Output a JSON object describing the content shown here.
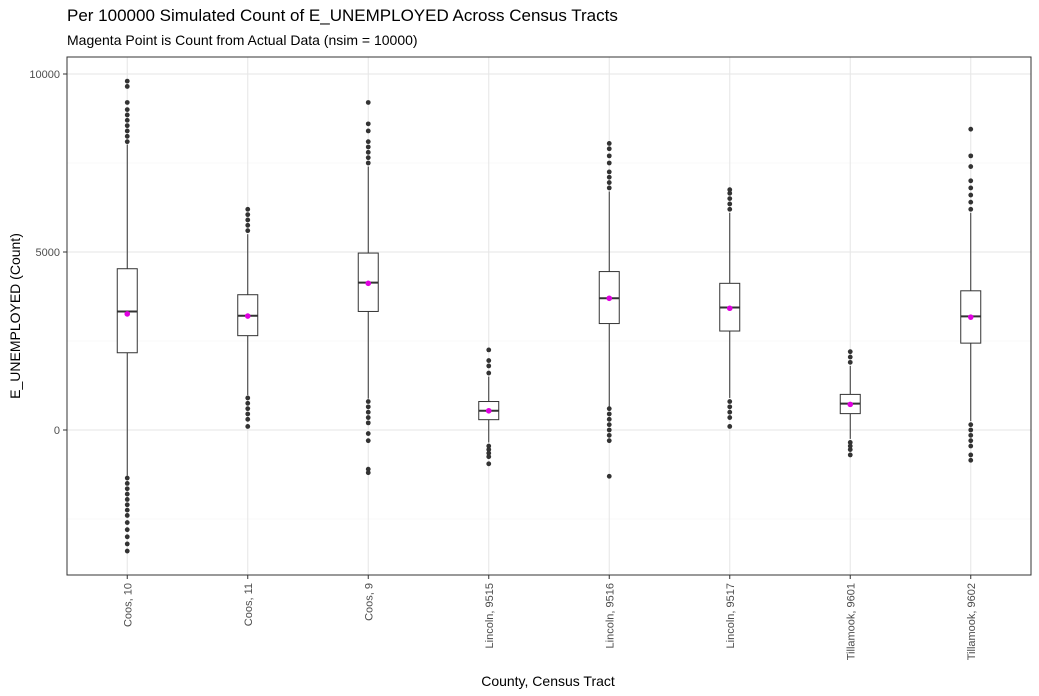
{
  "chart_data": {
    "type": "boxplot",
    "title": "Per 100000 Simulated Count of E_UNEMPLOYED Across Census Tracts",
    "subtitle": "Magenta Point is Count from Actual Data (nsim = 10000)",
    "xlabel": "County, Census Tract",
    "ylabel": "E_UNEMPLOYED (Count)",
    "ylim": [
      -4100,
      10300
    ],
    "yticks": [
      0,
      5000,
      10000
    ],
    "ytick_labels": [
      "0",
      "5000",
      "10000"
    ],
    "grid": true,
    "categories": [
      "Coos, 10",
      "Coos, 11",
      "Coos, 9",
      "Lincoln, 9515",
      "Lincoln, 9516",
      "Lincoln, 9517",
      "Tillamook, 9601",
      "Tillamook, 9602"
    ],
    "boxes": [
      {
        "q1": 2170,
        "median": 3330,
        "q3": 4530,
        "whisker_low": -1280,
        "whisker_high": 8020,
        "actual": 3260,
        "outliers_low": [
          -1350,
          -1500,
          -1650,
          -1800,
          -1950,
          -2100,
          -2250,
          -2400,
          -2600,
          -2800,
          -3000,
          -3200,
          -3400
        ],
        "outliers_high": [
          8100,
          8250,
          8400,
          8550,
          8700,
          8850,
          9000,
          9200,
          9650,
          9800
        ]
      },
      {
        "q1": 2650,
        "median": 3210,
        "q3": 3800,
        "whisker_low": 980,
        "whisker_high": 5500,
        "actual": 3200,
        "outliers_low": [
          900,
          750,
          600,
          450,
          300,
          100
        ],
        "outliers_high": [
          5600,
          5750,
          5900,
          6050,
          6200
        ]
      },
      {
        "q1": 3330,
        "median": 4140,
        "q3": 4970,
        "whisker_low": 880,
        "whisker_high": 7400,
        "actual": 4120,
        "outliers_low": [
          800,
          650,
          500,
          350,
          200,
          -100,
          -300,
          -1100,
          -1200
        ],
        "outliers_high": [
          7500,
          7650,
          7800,
          7950,
          8100,
          8400,
          8600,
          9200
        ]
      },
      {
        "q1": 290,
        "median": 540,
        "q3": 800,
        "whisker_low": -350,
        "whisker_high": 1500,
        "actual": 540,
        "outliers_low": [
          -450,
          -550,
          -650,
          -750,
          -950
        ],
        "outliers_high": [
          1600,
          1800,
          1950,
          2250
        ]
      },
      {
        "q1": 2990,
        "median": 3700,
        "q3": 4450,
        "whisker_low": 650,
        "whisker_high": 6700,
        "actual": 3700,
        "outliers_low": [
          600,
          450,
          300,
          150,
          0,
          -150,
          -300,
          -1300
        ],
        "outliers_high": [
          6800,
          6950,
          7100,
          7250,
          7500,
          7700,
          7900,
          8050
        ]
      },
      {
        "q1": 2780,
        "median": 3440,
        "q3": 4120,
        "whisker_low": 900,
        "whisker_high": 6100,
        "actual": 3420,
        "outliers_low": [
          800,
          650,
          500,
          350,
          100
        ],
        "outliers_high": [
          6200,
          6350,
          6500,
          6650,
          6750
        ]
      },
      {
        "q1": 460,
        "median": 740,
        "q3": 1000,
        "whisker_low": -250,
        "whisker_high": 1800,
        "actual": 720,
        "outliers_low": [
          -350,
          -450,
          -550,
          -700
        ],
        "outliers_high": [
          1900,
          2050,
          2200
        ]
      },
      {
        "q1": 2440,
        "median": 3190,
        "q3": 3910,
        "whisker_low": 250,
        "whisker_high": 6100,
        "actual": 3170,
        "outliers_low": [
          150,
          0,
          -150,
          -300,
          -450,
          -700,
          -850
        ],
        "outliers_high": [
          6200,
          6400,
          6600,
          6800,
          7000,
          7400,
          7700,
          8450
        ]
      }
    ]
  }
}
